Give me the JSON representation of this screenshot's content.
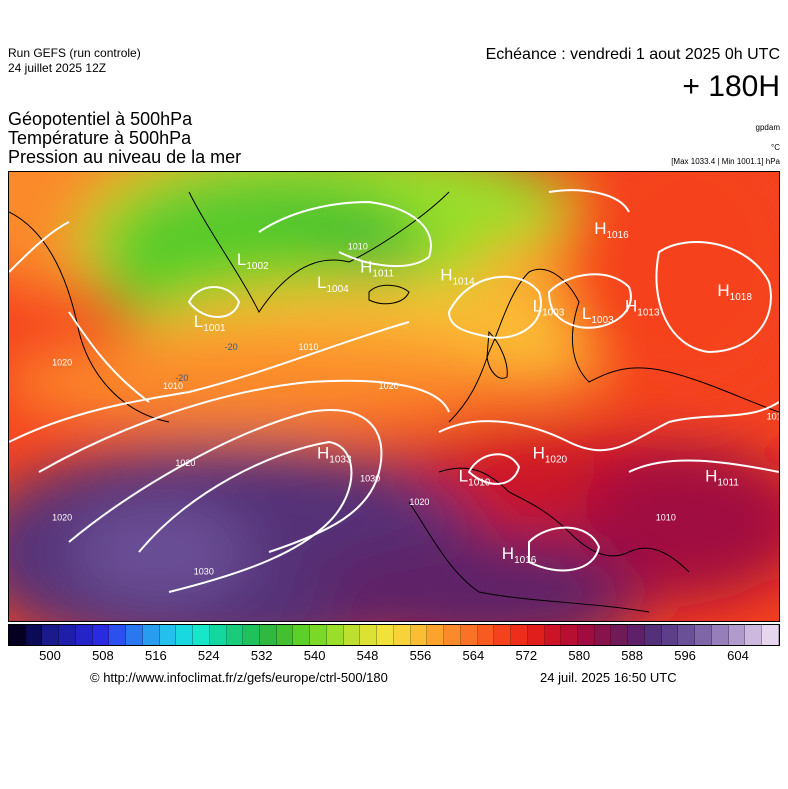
{
  "header": {
    "run_line1": "Run GEFS (run controle)",
    "run_line2": "24 juillet 2025 12Z",
    "echeance": "Echéance : vendredi 1 aout 2025 0h UTC",
    "lead_time": "+ 180H"
  },
  "titles": {
    "line1": "Géopotentiel à 500hPa",
    "line2": "Température à 500hPa",
    "line3": "Pression au niveau de la mer"
  },
  "units": {
    "geopotential": "gpdam",
    "temperature": "°C",
    "pressure": "[Max 1033.4 | Min 1001.1] hPa"
  },
  "centers": [
    {
      "type": "L",
      "value": "1002",
      "lon": -38,
      "lat": 68
    },
    {
      "type": "L",
      "value": "1004",
      "lon": -25,
      "lat": 65
    },
    {
      "type": "H",
      "value": "1011",
      "lon": -18,
      "lat": 67
    },
    {
      "type": "L",
      "value": "1001",
      "lon": -45,
      "lat": 60
    },
    {
      "type": "H",
      "value": "1014",
      "lon": -5,
      "lat": 66
    },
    {
      "type": "H",
      "value": "1016",
      "lon": 20,
      "lat": 72
    },
    {
      "type": "L",
      "value": "1003",
      "lon": 10,
      "lat": 62
    },
    {
      "type": "L",
      "value": "1003",
      "lon": 18,
      "lat": 61
    },
    {
      "type": "H",
      "value": "1013",
      "lon": 25,
      "lat": 62
    },
    {
      "type": "H",
      "value": "1018",
      "lon": 40,
      "lat": 64
    },
    {
      "type": "H",
      "value": "1033",
      "lon": -25,
      "lat": 43
    },
    {
      "type": "L",
      "value": "1010",
      "lon": -2,
      "lat": 40
    },
    {
      "type": "H",
      "value": "1020",
      "lon": 10,
      "lat": 43
    },
    {
      "type": "H",
      "value": "1011",
      "lon": 38,
      "lat": 40
    },
    {
      "type": "H",
      "value": "1016",
      "lon": 5,
      "lat": 30
    }
  ],
  "isobar_labels": [
    {
      "text": "1010",
      "lon": -20,
      "lat": 70
    },
    {
      "text": "1010",
      "lon": -28,
      "lat": 57
    },
    {
      "text": "1010",
      "lon": -50,
      "lat": 52
    },
    {
      "text": "1020",
      "lon": -68,
      "lat": 55
    },
    {
      "text": "1020",
      "lon": -15,
      "lat": 52
    },
    {
      "text": "1020",
      "lon": -48,
      "lat": 42
    },
    {
      "text": "1020",
      "lon": -68,
      "lat": 35
    },
    {
      "text": "1030",
      "lon": -18,
      "lat": 40
    },
    {
      "text": "1030",
      "lon": -45,
      "lat": 28
    },
    {
      "text": "1020",
      "lon": -10,
      "lat": 37
    },
    {
      "text": "1016",
      "lon": 48,
      "lat": 48
    },
    {
      "text": "1010",
      "lon": 50,
      "lat": 70
    },
    {
      "text": "1010",
      "lon": 30,
      "lat": 35
    }
  ],
  "temperature_labels": [
    {
      "text": "-20",
      "lon": -48,
      "lat": 53
    },
    {
      "text": "-20",
      "lon": -40,
      "lat": 57
    }
  ],
  "map": {
    "lon_range": [
      -75,
      50
    ],
    "lat_range": [
      22,
      80
    ]
  },
  "scale": {
    "colors": [
      "#050022",
      "#0a0a55",
      "#1a1a8a",
      "#1e1ea8",
      "#2424c8",
      "#2a2ae0",
      "#2b50ef",
      "#2a78f0",
      "#289df0",
      "#24bfec",
      "#1ad8e0",
      "#18e6c8",
      "#12d8a0",
      "#1acb7a",
      "#20c05a",
      "#30b840",
      "#44bf30",
      "#5ccf28",
      "#7ad826",
      "#9ade2a",
      "#bde030",
      "#dbe234",
      "#f0e23a",
      "#f8d23a",
      "#fbbd34",
      "#fca32e",
      "#fb8a2a",
      "#fa7226",
      "#f85a22",
      "#f5421e",
      "#ee2e1a",
      "#e01e1c",
      "#cc1426",
      "#b80e32",
      "#a00c40",
      "#88124c",
      "#701a58",
      "#5e2068",
      "#543078",
      "#5c3e8a",
      "#6a5096",
      "#7e66a8",
      "#957eba",
      "#b19acc",
      "#cdb8de",
      "#e6d6ee"
    ],
    "ticks": [
      "500",
      "508",
      "516",
      "524",
      "532",
      "540",
      "548",
      "556",
      "564",
      "572",
      "580",
      "588",
      "596",
      "604"
    ]
  },
  "footer": {
    "url": "© http://www.infoclimat.fr/z/gefs/europe/ctrl-500/180",
    "timestamp": "24 juil. 2025 16:50 UTC"
  }
}
